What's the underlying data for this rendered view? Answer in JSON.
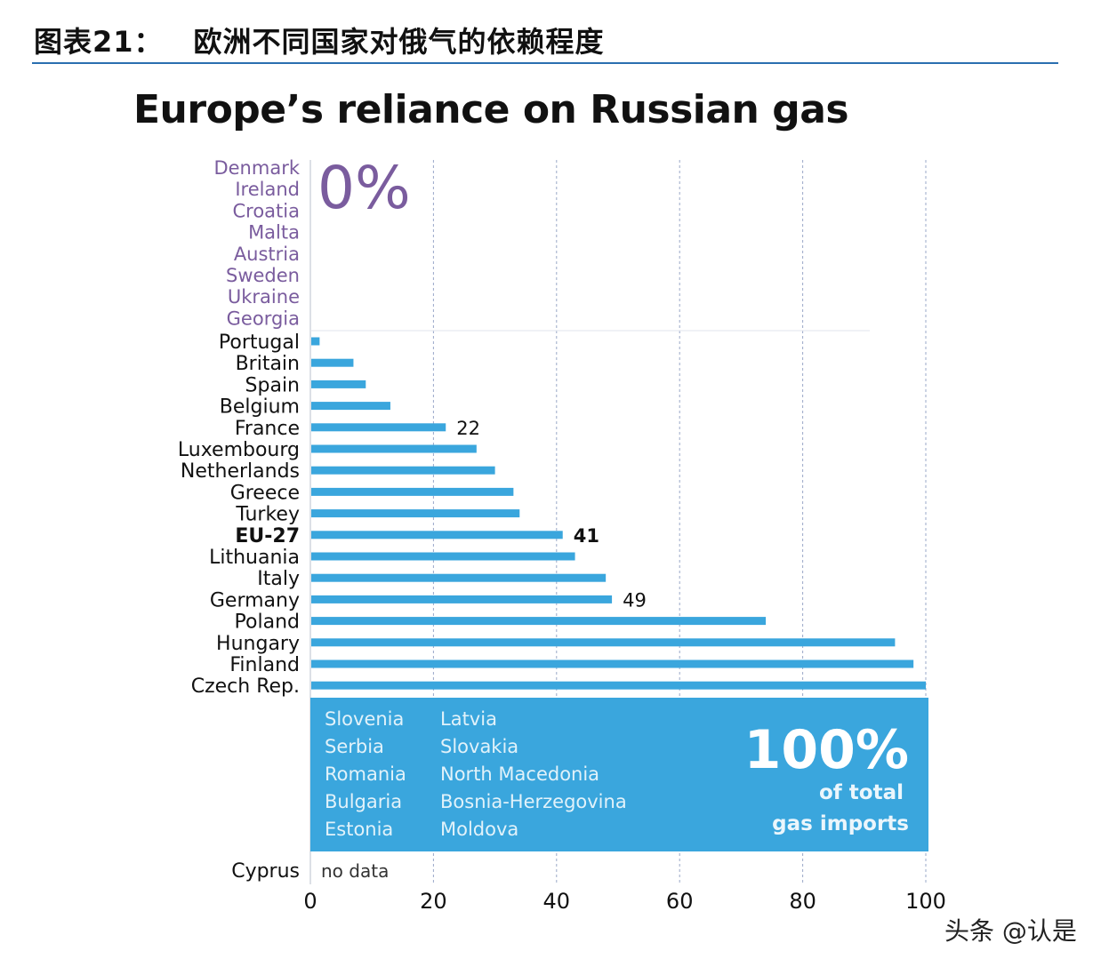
{
  "header": {
    "figure_label": "图表21：",
    "figure_title": "欧洲不同国家对俄气的依赖程度"
  },
  "watermark": "头条 @认是",
  "colors": {
    "bar": "#3aa6dd",
    "box": "#3aa6dd",
    "zero_group": "#7a5c9e",
    "grid": "#9aa8c8",
    "rule": "#2a6fb0"
  },
  "chart_data": {
    "type": "bar",
    "orientation": "horizontal",
    "title": "Europe’s reliance on Russian gas",
    "xlim": [
      0,
      100
    ],
    "x_ticks": [
      0,
      20,
      40,
      60,
      80,
      100
    ],
    "grid": true,
    "zero_group": {
      "label": "0%",
      "countries": [
        "Denmark",
        "Ireland",
        "Croatia",
        "Malta",
        "Austria",
        "Sweden",
        "Ukraine",
        "Georgia"
      ]
    },
    "bars": [
      {
        "category": "Portugal",
        "value": 1.5
      },
      {
        "category": "Britain",
        "value": 7
      },
      {
        "category": "Spain",
        "value": 9
      },
      {
        "category": "Belgium",
        "value": 13
      },
      {
        "category": "France",
        "value": 22,
        "label": "22"
      },
      {
        "category": "Luxembourg",
        "value": 27
      },
      {
        "category": "Netherlands",
        "value": 30
      },
      {
        "category": "Greece",
        "value": 33
      },
      {
        "category": "Turkey",
        "value": 34
      },
      {
        "category": "EU-27",
        "value": 41,
        "label": "41",
        "bold": true
      },
      {
        "category": "Lithuania",
        "value": 43
      },
      {
        "category": "Italy",
        "value": 48
      },
      {
        "category": "Germany",
        "value": 49,
        "label": "49"
      },
      {
        "category": "Poland",
        "value": 74
      },
      {
        "category": "Hungary",
        "value": 95
      },
      {
        "category": "Finland",
        "value": 98
      },
      {
        "category": "Czech Rep.",
        "value": 100
      }
    ],
    "full_group": {
      "value": 100,
      "big_label": "100%",
      "sub_label_1": "of total",
      "sub_label_2": "gas imports",
      "countries_col1": [
        "Slovenia",
        "Serbia",
        "Romania",
        "Bulgaria",
        "Estonia"
      ],
      "countries_col2": [
        "Latvia",
        "Slovakia",
        "North Macedonia",
        "Bosnia-Herzegovina",
        "Moldova"
      ]
    },
    "no_data": {
      "category": "Cyprus",
      "label": "no data"
    }
  }
}
